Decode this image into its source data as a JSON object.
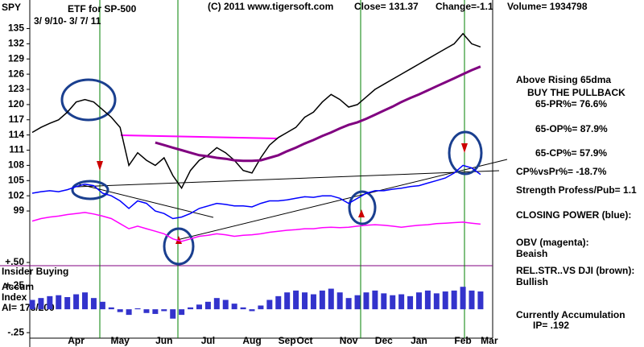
{
  "header": {
    "symbol": "SPY",
    "subtitle": "ETF for SP-500",
    "dates": "3/ 9/10- 3/ 7/ 11",
    "copyright": "(C) 2011 www.tigersoft.com",
    "close": "Close= 131.37",
    "change": "Change=-1.1",
    "volume": "Volume= 1934798"
  },
  "notes": [
    "Above Rising 65dma",
    "BUY THE PULLBACK",
    "65-PR%= 76.6%",
    "65-OP%= 87.9%",
    "65-CP%= 57.9%",
    "CP%vsPr%= -18.7%",
    "Strength Profess/Pub= 1.1",
    "CLOSING POWER (blue):",
    "OBV (magenta):",
    "Beaish",
    "REL.STR..VS DJI (brown):",
    "Bullish",
    "Currently Accumulation",
    "IP= .192"
  ],
  "side_labels": [
    "Insider Buying",
    "Accum",
    "Index",
    "AI= 175/200"
  ],
  "chart_data": [
    {
      "type": "line",
      "categories": [
        null,
        null,
        null,
        null,
        null,
        "Apr",
        null,
        null,
        null,
        null,
        "May",
        null,
        null,
        null,
        null,
        "Jun",
        null,
        null,
        null,
        null,
        "Jul",
        null,
        null,
        null,
        null,
        "Aug",
        null,
        null,
        null,
        "Sep",
        null,
        "Oct",
        null,
        null,
        null,
        null,
        "Nov",
        null,
        null,
        null,
        "Dec",
        null,
        null,
        null,
        "Jan",
        null,
        null,
        null,
        null,
        "Feb",
        null,
        null,
        "Mar"
      ],
      "ylim": [
        89,
        140
      ],
      "yticks": [
        99,
        102,
        105,
        108,
        111,
        114,
        117,
        120,
        123,
        126,
        129,
        132,
        135
      ],
      "series": [
        {
          "color": "#000000",
          "values": [
            114.5,
            115.5,
            116.3,
            117,
            118.5,
            120.5,
            121,
            120.5,
            119,
            117.5,
            115.5,
            108,
            110.5,
            109,
            108,
            109.5,
            106,
            103.5,
            107,
            109,
            110,
            111.5,
            110.5,
            109,
            107,
            106.5,
            109.5,
            112,
            113.5,
            114.5,
            115.5,
            117.5,
            118.5,
            120.5,
            122,
            121,
            119.5,
            120,
            121.5,
            123,
            124,
            125,
            126,
            127,
            128,
            129,
            130,
            131,
            132,
            134,
            132,
            131.37,
            null
          ]
        },
        {
          "color": "#800080",
          "values": [
            null,
            null,
            null,
            null,
            null,
            null,
            null,
            null,
            null,
            null,
            null,
            null,
            null,
            null,
            112.5,
            112,
            111.5,
            111,
            110.5,
            110,
            109.8,
            109.5,
            109.3,
            109,
            108.9,
            108.9,
            109,
            109.5,
            110,
            110.8,
            111.5,
            112.3,
            113,
            113.8,
            114.5,
            115.3,
            116,
            116.5,
            117.2,
            118,
            118.8,
            119.6,
            120.5,
            121.3,
            122,
            122.8,
            123.6,
            124.4,
            125.2,
            126,
            126.8,
            127.5,
            null
          ]
        },
        {
          "color": "#0000ff",
          "values": [
            102.5,
            102.8,
            103,
            102.8,
            103.2,
            103.8,
            104.3,
            104,
            102.5,
            102,
            101,
            99.5,
            101,
            100.5,
            99,
            98.5,
            97.5,
            97.8,
            98.5,
            99.5,
            100,
            100.5,
            100.3,
            100,
            100,
            99.8,
            100.5,
            101,
            101,
            101.2,
            101.5,
            101.8,
            101.7,
            102,
            102,
            101.5,
            100.5,
            101.5,
            102.5,
            103,
            103,
            103.3,
            103.5,
            103.8,
            104,
            104.5,
            105,
            105.5,
            106.5,
            108,
            107.5,
            106.2,
            null
          ]
        },
        {
          "color": "#ff00ff",
          "values": [
            97,
            97.5,
            97.8,
            98,
            98.3,
            98.5,
            98.7,
            98.4,
            98,
            97.5,
            96.5,
            95.5,
            96,
            95.5,
            95,
            94.5,
            93.5,
            93,
            93.5,
            94,
            94.2,
            94.5,
            94.3,
            94,
            94.2,
            94.3,
            94.5,
            94.8,
            95,
            95.2,
            95.3,
            95.5,
            95.5,
            95.7,
            95.8,
            95.7,
            95.8,
            96,
            96.2,
            96.3,
            96.2,
            96,
            95.8,
            96,
            96.2,
            96.3,
            96.5,
            96.6,
            96.7,
            96.8,
            96.6,
            96.4,
            null
          ]
        }
      ]
    },
    {
      "type": "bar",
      "color": "#3333cc",
      "ylim": [
        -0.3,
        0.5
      ],
      "yticks": [
        {
          "value": 0.5,
          "label": "+.50"
        },
        {
          "value": 0.25,
          "label": "+.25"
        },
        {
          "value": -0.25,
          "label": "-.25"
        }
      ],
      "values": [
        0.1,
        0.12,
        0.14,
        0.15,
        0.13,
        0.16,
        0.18,
        0.12,
        0.08,
        0.02,
        -0.03,
        -0.06,
        0.01,
        -0.04,
        -0.05,
        -0.02,
        -0.1,
        -0.06,
        0.02,
        0.05,
        0.08,
        0.12,
        0.1,
        0.06,
        0.02,
        -0.02,
        0.04,
        0.1,
        0.14,
        0.18,
        0.2,
        0.18,
        0.16,
        0.2,
        0.22,
        0.18,
        0.12,
        0.15,
        0.18,
        0.2,
        0.17,
        0.15,
        0.16,
        0.14,
        0.18,
        0.2,
        0.17,
        0.19,
        0.2,
        0.24,
        0.2,
        0.19,
        null
      ]
    }
  ]
}
